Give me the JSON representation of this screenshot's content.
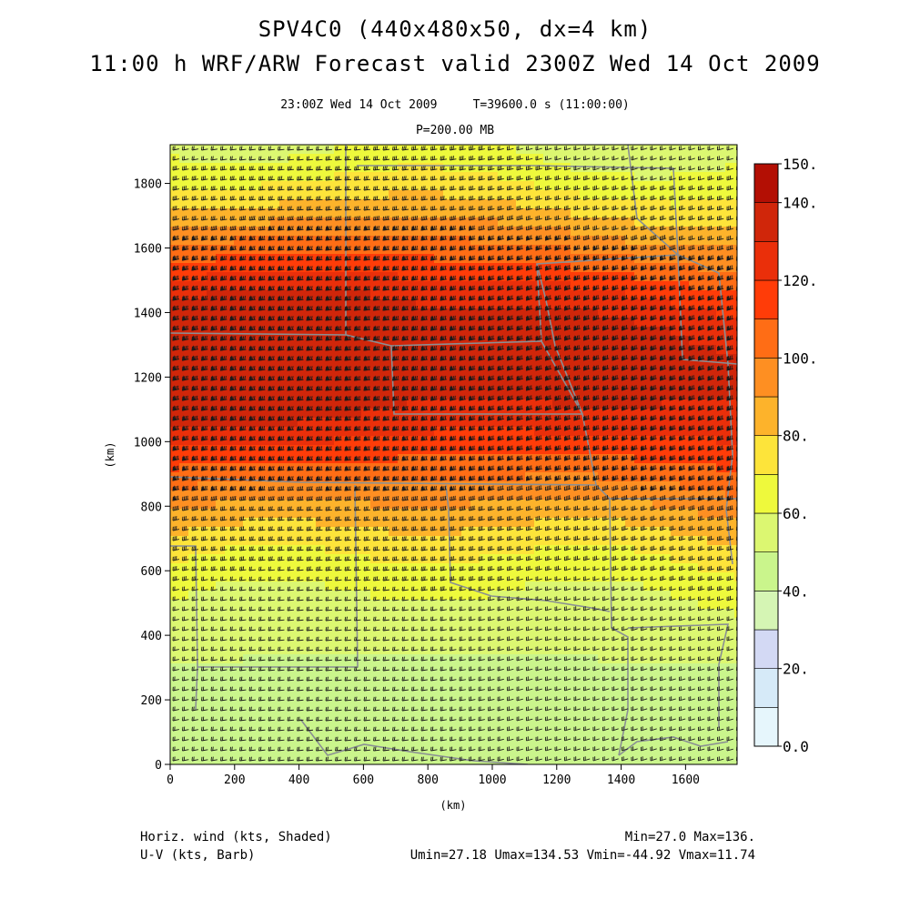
{
  "header": {
    "title_line1": "SPV4C0 (440x480x50, dx=4 km)",
    "title_line2": "11:00 h WRF/ARW Forecast valid 2300Z Wed 14 Oct 2009",
    "valid_time": "23:00Z Wed 14 Oct 2009",
    "model_time": "T=39600.0 s (11:00:00)",
    "level": "P=200.00 MB"
  },
  "footer": {
    "shaded_label": "Horiz. wind (kts, Shaded)",
    "barb_label": "U-V (kts, Barb)",
    "minmax": "Min=27.0 Max=136.",
    "uv_stats": "Umin=27.18 Umax=134.53 Vmin=-44.92 Vmax=11.74"
  },
  "map": {
    "x_axis_label": "(km)",
    "y_axis_label": "(km)",
    "x_ticks": [
      0,
      200,
      400,
      600,
      800,
      1000,
      1200,
      1400,
      1600
    ],
    "y_ticks": [
      0,
      200,
      400,
      600,
      800,
      1000,
      1200,
      1400,
      1600,
      1800
    ],
    "x_range_km": [
      0,
      1760
    ],
    "y_range_km": [
      0,
      1920
    ],
    "field": "Horizontal wind speed at 200 mb (kts)",
    "jet_axis_y_km": 1250,
    "jet_max_kts": 136,
    "field_min_kts": 27,
    "barb_direction": "west-southwesterly"
  },
  "colorbar": {
    "tick_labels": [
      "150.",
      "140.",
      "120.",
      "100.",
      "80.",
      "60.",
      "40.",
      "20.",
      "0.0"
    ],
    "levels": [
      0,
      10,
      20,
      30,
      40,
      50,
      60,
      70,
      80,
      90,
      100,
      110,
      120,
      130,
      140,
      150
    ],
    "colors": [
      "#e6f6fc",
      "#d6eaf8",
      "#d3d9f4",
      "#d5f5b4",
      "#caf58c",
      "#dcf771",
      "#eef93c",
      "#fde43a",
      "#fdb32b",
      "#fe8f22",
      "#ff6d15",
      "#ff3c08",
      "#ea2f0a",
      "#d0260a",
      "#b30f04"
    ]
  }
}
